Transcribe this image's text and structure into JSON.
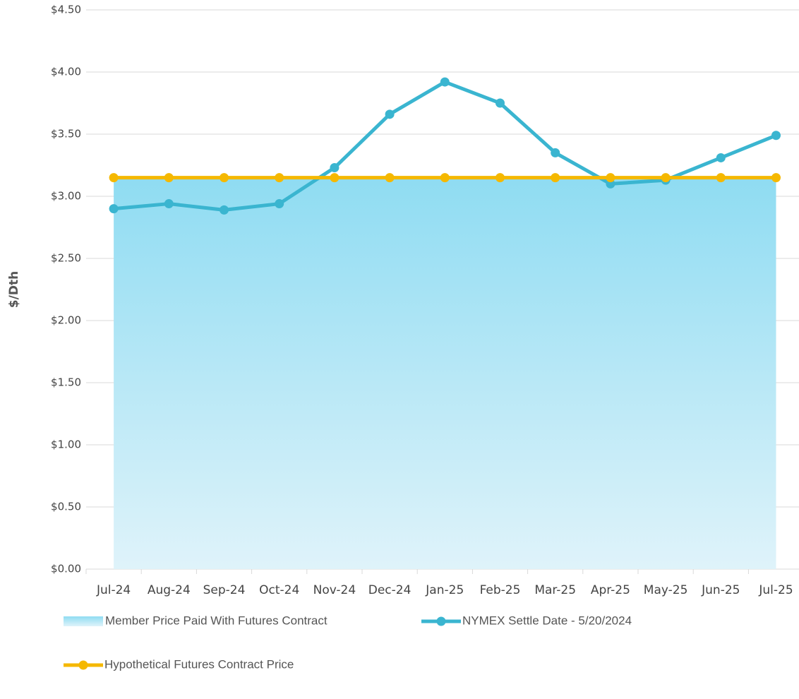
{
  "chart_data": {
    "type": "line",
    "ylabel": "$/Dth",
    "categories": [
      "Jul-24",
      "Aug-24",
      "Sep-24",
      "Oct-24",
      "Nov-24",
      "Dec-24",
      "Jan-25",
      "Feb-25",
      "Mar-25",
      "Apr-25",
      "May-25",
      "Jun-25",
      "Jul-25"
    ],
    "series": [
      {
        "name": "Member Price Paid With Futures Contract",
        "type": "area",
        "color": "#8fdcf2",
        "values": [
          3.15,
          3.15,
          3.15,
          3.15,
          3.15,
          3.15,
          3.15,
          3.15,
          3.15,
          3.15,
          3.15,
          3.15,
          3.15
        ]
      },
      {
        "name": "NYMEX Settle Date - 5/20/2024",
        "type": "line",
        "color": "#3ab5d0",
        "values": [
          2.9,
          2.94,
          2.89,
          2.94,
          3.23,
          3.66,
          3.92,
          3.75,
          3.35,
          3.1,
          3.13,
          3.31,
          3.49
        ]
      },
      {
        "name": "Hypothetical Futures Contract Price",
        "type": "line",
        "color": "#f5b800",
        "values": [
          3.15,
          3.15,
          3.15,
          3.15,
          3.15,
          3.15,
          3.15,
          3.15,
          3.15,
          3.15,
          3.15,
          3.15,
          3.15
        ]
      }
    ],
    "ylim": [
      0,
      4.5
    ],
    "yticks": [
      {
        "value": 0,
        "label": "$0.00"
      },
      {
        "value": 0.5,
        "label": "$0.50"
      },
      {
        "value": 1,
        "label": "$1.00"
      },
      {
        "value": 1.5,
        "label": "$1.50"
      },
      {
        "value": 2,
        "label": "$2.00"
      },
      {
        "value": 2.5,
        "label": "$2.50"
      },
      {
        "value": 3,
        "label": "$3.00"
      },
      {
        "value": 3.5,
        "label": "$3.50"
      },
      {
        "value": 4,
        "label": "$4.00"
      },
      {
        "value": 4.5,
        "label": "$4.50"
      }
    ],
    "grid": true
  }
}
